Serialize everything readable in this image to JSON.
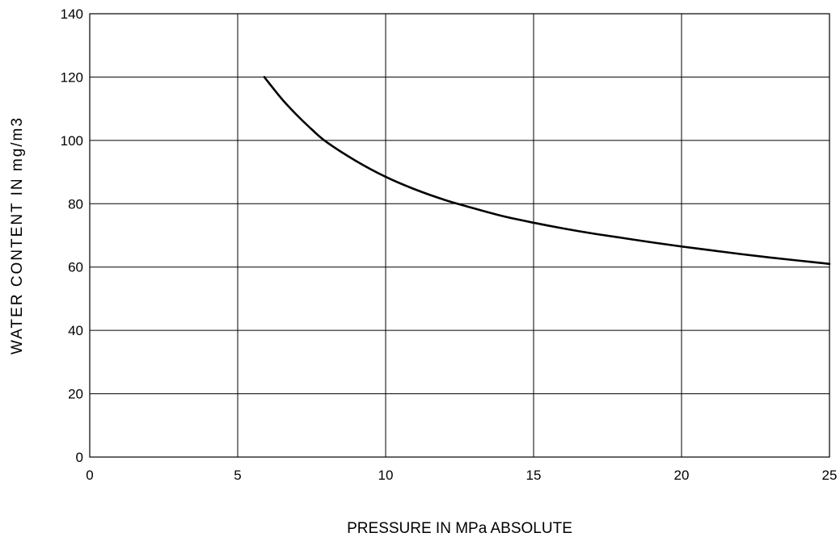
{
  "chart_data": {
    "type": "line",
    "title": "",
    "xlabel": "PRESSURE IN MPa ABSOLUTE",
    "ylabel": "WATER CONTENT IN mg/m3",
    "xlim": [
      0,
      25
    ],
    "ylim": [
      0,
      140
    ],
    "x_ticks": [
      0,
      5,
      10,
      15,
      20,
      25
    ],
    "y_ticks": [
      0,
      20,
      40,
      60,
      80,
      100,
      120,
      140
    ],
    "grid": true,
    "legend": "none",
    "line_color": "#000000",
    "series": [
      {
        "x": [
          5.9,
          6.5,
          7.0,
          7.5,
          8.0,
          9.0,
          10.0,
          11.0,
          12.0,
          13.0,
          14.0,
          15.0,
          16.0,
          17.0,
          18.0,
          19.0,
          20.0,
          21.0,
          22.0,
          23.0,
          24.0,
          25.0
        ],
        "y": [
          120,
          113,
          108,
          103.5,
          99.5,
          93.5,
          88.5,
          84.5,
          81.2,
          78.5,
          76,
          74,
          72.2,
          70.6,
          69.2,
          67.8,
          66.5,
          65.3,
          64.1,
          63,
          62,
          61
        ]
      }
    ]
  }
}
